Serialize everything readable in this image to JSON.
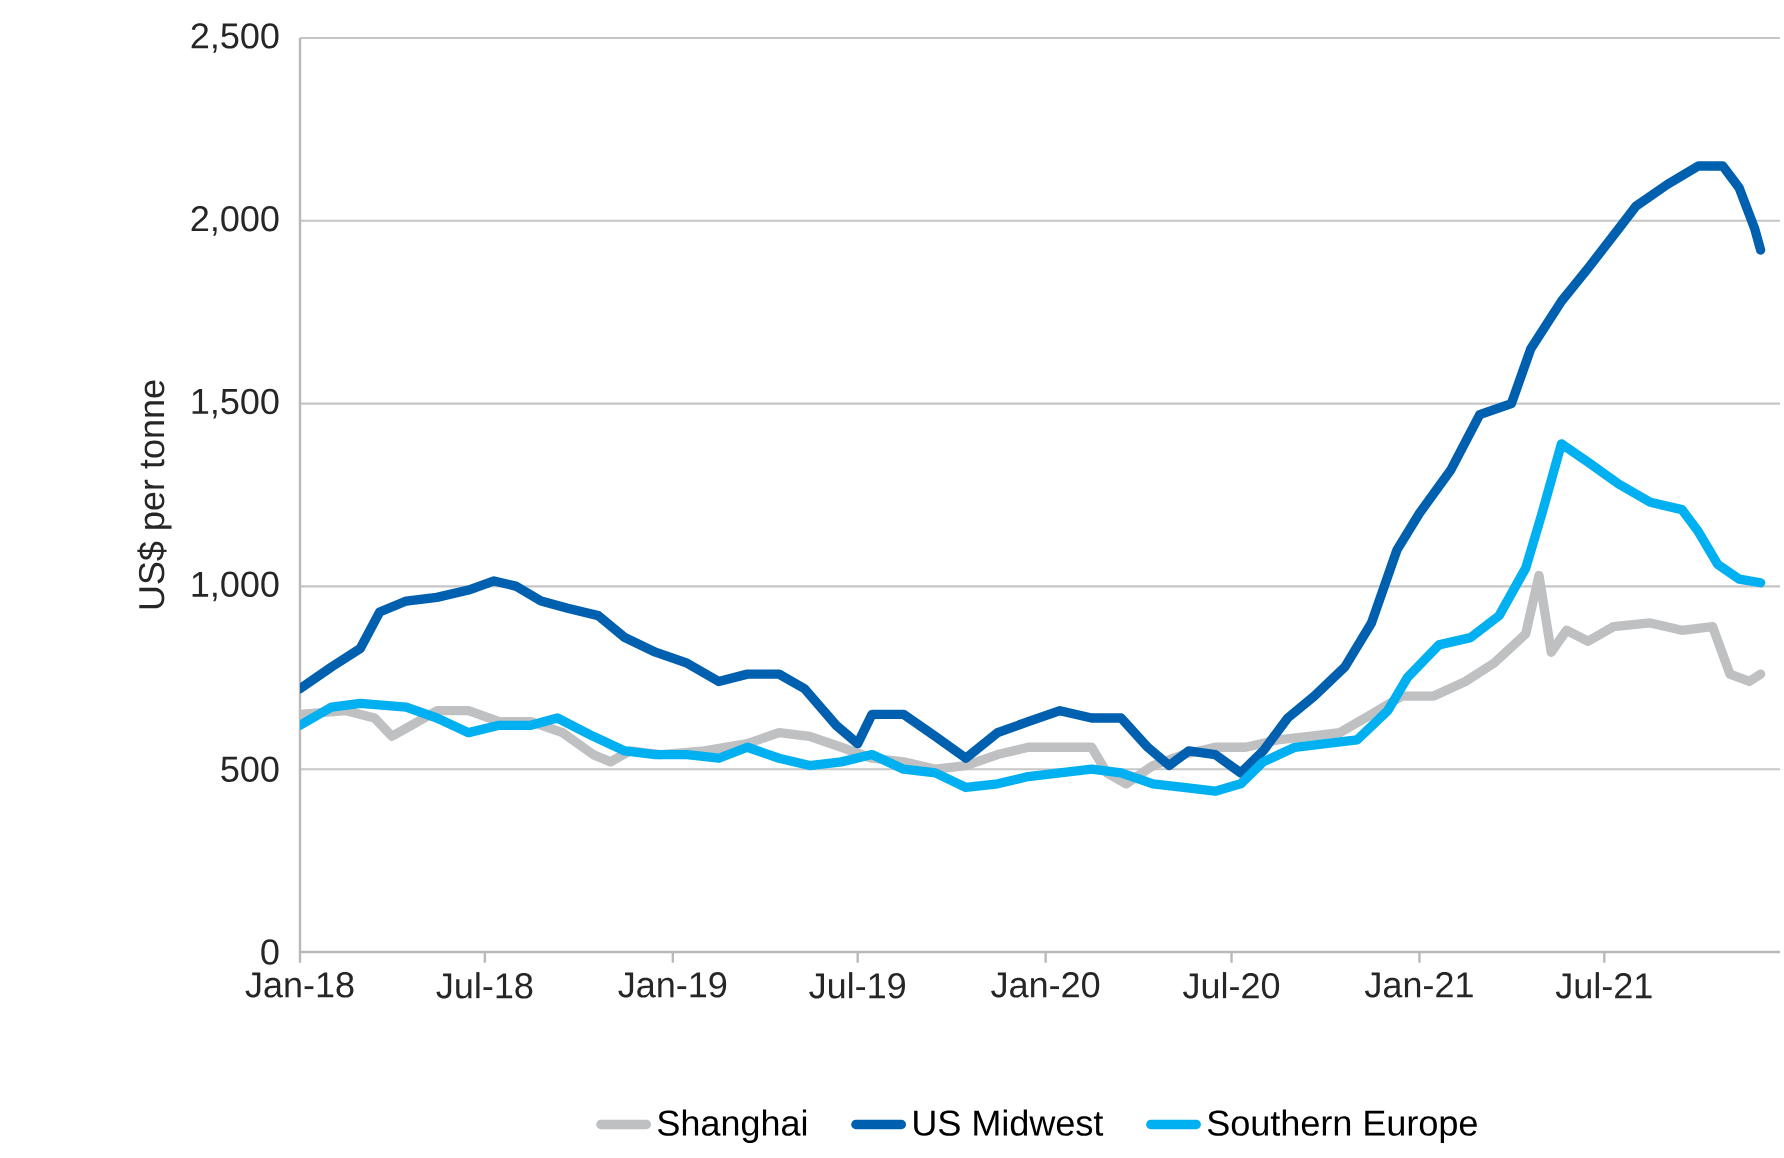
{
  "chart_data": {
    "type": "line",
    "ylabel": "US$ per tonne",
    "ylim": [
      0,
      2500
    ],
    "yticks": [
      {
        "value": 0,
        "label": "0"
      },
      {
        "value": 500,
        "label": "500"
      },
      {
        "value": 1000,
        "label": "1,000"
      },
      {
        "value": 1500,
        "label": "1,500"
      },
      {
        "value": 2000,
        "label": "2,000"
      },
      {
        "value": 2500,
        "label": "2,500"
      }
    ],
    "xlim": [
      "2018-01-01",
      "2021-12-20"
    ],
    "xticks": [
      {
        "value": "2018-01-01",
        "label": "Jan-18"
      },
      {
        "value": "2018-07-01",
        "label": "Jul-18"
      },
      {
        "value": "2019-01-01",
        "label": "Jan-19"
      },
      {
        "value": "2019-07-01",
        "label": "Jul-19"
      },
      {
        "value": "2020-01-01",
        "label": "Jan-20"
      },
      {
        "value": "2020-07-01",
        "label": "Jul-20"
      },
      {
        "value": "2021-01-01",
        "label": "Jan-21"
      },
      {
        "value": "2021-07-01",
        "label": "Jul-21"
      }
    ],
    "grid": "y",
    "legend": "bottom",
    "marker": "none",
    "line_style": "solid",
    "series": [
      {
        "name": "Shanghai",
        "color": "#bfc0c2",
        "x": [
          "2018-01-01",
          "2018-02-15",
          "2018-03-15",
          "2018-04-01",
          "2018-04-20",
          "2018-05-15",
          "2018-06-15",
          "2018-07-15",
          "2018-08-15",
          "2018-09-15",
          "2018-10-15",
          "2018-11-01",
          "2018-11-20",
          "2018-12-20",
          "2019-02-01",
          "2019-03-15",
          "2019-04-15",
          "2019-05-15",
          "2019-06-15",
          "2019-07-15",
          "2019-08-15",
          "2019-09-15",
          "2019-10-15",
          "2019-11-15",
          "2019-12-15",
          "2020-01-15",
          "2020-02-15",
          "2020-03-01",
          "2020-03-20",
          "2020-04-15",
          "2020-05-15",
          "2020-06-15",
          "2020-07-15",
          "2020-08-15",
          "2020-09-15",
          "2020-10-15",
          "2020-11-15",
          "2020-12-15",
          "2021-01-15",
          "2021-02-15",
          "2021-03-15",
          "2021-04-15",
          "2021-04-28",
          "2021-05-10",
          "2021-05-25",
          "2021-06-15",
          "2021-07-10",
          "2021-08-15",
          "2021-09-15",
          "2021-10-15",
          "2021-11-01",
          "2021-11-20",
          "2021-12-01"
        ],
        "values": [
          650,
          660,
          640,
          590,
          620,
          660,
          660,
          630,
          630,
          600,
          540,
          520,
          550,
          540,
          550,
          570,
          600,
          590,
          560,
          530,
          520,
          500,
          510,
          540,
          560,
          560,
          560,
          490,
          460,
          510,
          540,
          560,
          560,
          580,
          590,
          600,
          650,
          700,
          700,
          740,
          790,
          870,
          1030,
          820,
          880,
          850,
          890,
          900,
          880,
          890,
          760,
          740,
          760
        ]
      },
      {
        "name": "US Midwest",
        "color": "#0060b0",
        "x": [
          "2018-01-01",
          "2018-02-01",
          "2018-03-01",
          "2018-03-20",
          "2018-04-15",
          "2018-05-15",
          "2018-06-15",
          "2018-07-10",
          "2018-08-01",
          "2018-08-25",
          "2018-09-20",
          "2018-10-20",
          "2018-11-15",
          "2018-12-15",
          "2019-01-15",
          "2019-02-15",
          "2019-03-15",
          "2019-04-15",
          "2019-05-10",
          "2019-06-10",
          "2019-07-01",
          "2019-07-15",
          "2019-08-15",
          "2019-09-15",
          "2019-10-15",
          "2019-11-15",
          "2019-12-15",
          "2020-01-15",
          "2020-02-15",
          "2020-03-15",
          "2020-04-10",
          "2020-05-01",
          "2020-05-20",
          "2020-06-15",
          "2020-07-10",
          "2020-08-01",
          "2020-08-25",
          "2020-09-20",
          "2020-10-20",
          "2020-11-15",
          "2020-12-10",
          "2021-01-01",
          "2021-02-01",
          "2021-03-01",
          "2021-04-01",
          "2021-04-20",
          "2021-05-20",
          "2021-06-15",
          "2021-07-10",
          "2021-08-01",
          "2021-09-01",
          "2021-10-01",
          "2021-10-25",
          "2021-11-10",
          "2021-11-25",
          "2021-12-01"
        ],
        "values": [
          720,
          780,
          830,
          930,
          960,
          970,
          990,
          1015,
          1000,
          960,
          940,
          920,
          860,
          820,
          790,
          740,
          760,
          760,
          720,
          620,
          570,
          650,
          650,
          590,
          530,
          600,
          630,
          660,
          640,
          640,
          560,
          510,
          550,
          540,
          490,
          550,
          640,
          700,
          780,
          900,
          1100,
          1200,
          1320,
          1470,
          1500,
          1650,
          1780,
          1870,
          1960,
          2040,
          2100,
          2150,
          2150,
          2090,
          1980,
          1920
        ]
      },
      {
        "name": "Southern Europe",
        "color": "#00b0f0",
        "x": [
          "2018-01-01",
          "2018-02-01",
          "2018-03-01",
          "2018-04-15",
          "2018-05-15",
          "2018-06-15",
          "2018-07-15",
          "2018-08-15",
          "2018-09-10",
          "2018-10-15",
          "2018-11-15",
          "2018-12-15",
          "2019-01-15",
          "2019-02-15",
          "2019-03-15",
          "2019-04-15",
          "2019-05-15",
          "2019-06-15",
          "2019-07-15",
          "2019-08-15",
          "2019-09-15",
          "2019-10-15",
          "2019-11-15",
          "2019-12-15",
          "2020-01-15",
          "2020-02-15",
          "2020-03-15",
          "2020-04-15",
          "2020-05-15",
          "2020-06-15",
          "2020-07-10",
          "2020-08-01",
          "2020-09-01",
          "2020-10-01",
          "2020-11-01",
          "2020-12-01",
          "2020-12-20",
          "2021-01-20",
          "2021-02-20",
          "2021-03-20",
          "2021-04-15",
          "2021-05-01",
          "2021-05-20",
          "2021-06-15",
          "2021-07-15",
          "2021-08-15",
          "2021-09-15",
          "2021-10-01",
          "2021-10-20",
          "2021-11-10",
          "2021-12-01"
        ],
        "values": [
          620,
          670,
          680,
          670,
          640,
          600,
          620,
          620,
          640,
          590,
          550,
          540,
          540,
          530,
          560,
          530,
          510,
          520,
          540,
          500,
          490,
          450,
          460,
          480,
          490,
          500,
          490,
          460,
          450,
          440,
          460,
          520,
          560,
          570,
          580,
          660,
          750,
          840,
          860,
          920,
          1050,
          1200,
          1390,
          1340,
          1280,
          1230,
          1210,
          1150,
          1060,
          1020,
          1010
        ]
      }
    ]
  }
}
